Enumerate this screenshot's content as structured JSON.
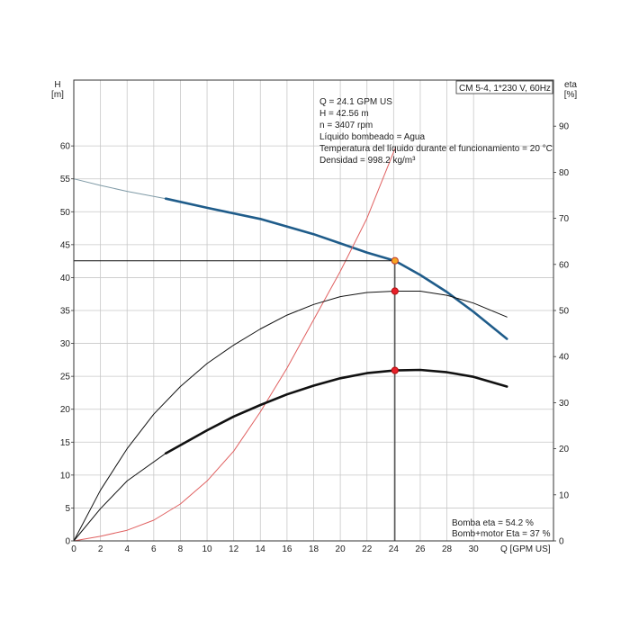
{
  "chart_data": {
    "type": "line",
    "title": "CM 5-4, 1*230 V, 60Hz",
    "xlabel": "Q [GPM US]",
    "ylabel_left_name": "H",
    "ylabel_left_unit": "[m]",
    "ylabel_right_name": "eta",
    "ylabel_right_unit": "[%]",
    "xlim": [
      0,
      36
    ],
    "ylim_left": [
      0,
      70
    ],
    "ylim_right": [
      0,
      100
    ],
    "grid": true,
    "x_ticks": [
      0,
      2,
      4,
      6,
      8,
      10,
      12,
      14,
      16,
      18,
      20,
      22,
      24,
      26,
      28,
      30
    ],
    "x_tick_labels": [
      "0",
      "2",
      "4",
      "6",
      "8",
      "10",
      "12",
      "14",
      "16",
      "18",
      "20",
      "22",
      "24",
      "26",
      "28",
      "30"
    ],
    "x_axis_end_label": "Q [GPM US]",
    "left_ticks": [
      0,
      5,
      10,
      15,
      20,
      25,
      30,
      35,
      40,
      45,
      50,
      55,
      60
    ],
    "right_ticks": [
      0,
      10,
      20,
      30,
      40,
      50,
      60,
      70,
      80,
      90
    ],
    "info_lines": [
      "Q = 24.1 GPM US",
      "H = 42.56 m",
      "n = 3407 rpm",
      "Líquido bombeado = Agua",
      "Temperatura del líquido durante el funcionamiento = 20 °C",
      "Densidad = 998.2 kg/m³"
    ],
    "eta_lines": [
      "Bomba eta = 54.2 %",
      "Bomb+motor Eta = 37 %"
    ],
    "duty_point": {
      "x": 24.1,
      "y": 42.56
    },
    "series": [
      {
        "axis": "left",
        "color": "#7f9aa6",
        "style": "thin",
        "x": [
          0,
          2,
          4,
          6.9
        ],
        "y": [
          55.0,
          54.0,
          53.1,
          52.0
        ]
      },
      {
        "axis": "left",
        "color": "#1f5c8a",
        "style": "thick",
        "x": [
          6.9,
          10,
          14,
          18,
          20,
          22,
          24.1,
          26,
          28,
          30,
          32.5
        ],
        "y": [
          52.0,
          50.6,
          48.9,
          46.6,
          45.2,
          43.8,
          42.56,
          40.4,
          37.8,
          34.8,
          30.7
        ]
      },
      {
        "axis": "right",
        "color": "#e06060",
        "style": "thin",
        "x": [
          0,
          2,
          4,
          6,
          8,
          10,
          12,
          14,
          16,
          18,
          20,
          22,
          24.1
        ],
        "y": [
          0,
          1,
          2.3,
          4.5,
          8,
          13,
          19.5,
          28,
          37.5,
          48,
          58.5,
          70,
          85.1
        ]
      },
      {
        "axis": "right",
        "color": "#111111",
        "style": "thin",
        "x": [
          0,
          2,
          4,
          6,
          8,
          10,
          12,
          14,
          16,
          18,
          20,
          22,
          24.1,
          26,
          28,
          30,
          32.5
        ],
        "y": [
          0,
          11,
          20,
          27.5,
          33.5,
          38.5,
          42.5,
          46,
          49,
          51.3,
          53,
          53.9,
          54.2,
          54.2,
          53.3,
          51.6,
          48.6
        ]
      },
      {
        "axis": "right",
        "color": "#111111",
        "style": "thin",
        "x": [
          0,
          2,
          4,
          6.9
        ],
        "y": [
          0,
          7,
          13,
          19
        ]
      },
      {
        "axis": "right",
        "color": "#111111",
        "style": "thick",
        "x": [
          6.9,
          10,
          12,
          14,
          16,
          18,
          20,
          22,
          24.1,
          26,
          28,
          30,
          32.5
        ],
        "y": [
          19,
          24,
          27,
          29.5,
          31.8,
          33.7,
          35.3,
          36.4,
          37,
          37.1,
          36.6,
          35.6,
          33.5
        ]
      }
    ],
    "markers": [
      {
        "axis": "left",
        "x": 24.1,
        "y": 42.56,
        "fill": "#f5a623",
        "stroke": "#c0392b"
      },
      {
        "axis": "right",
        "x": 24.1,
        "y": 54.2,
        "fill": "#e8202a",
        "stroke": "#b01010"
      },
      {
        "axis": "right",
        "x": 24.1,
        "y": 37,
        "fill": "#e8202a",
        "stroke": "#b01010"
      }
    ]
  }
}
